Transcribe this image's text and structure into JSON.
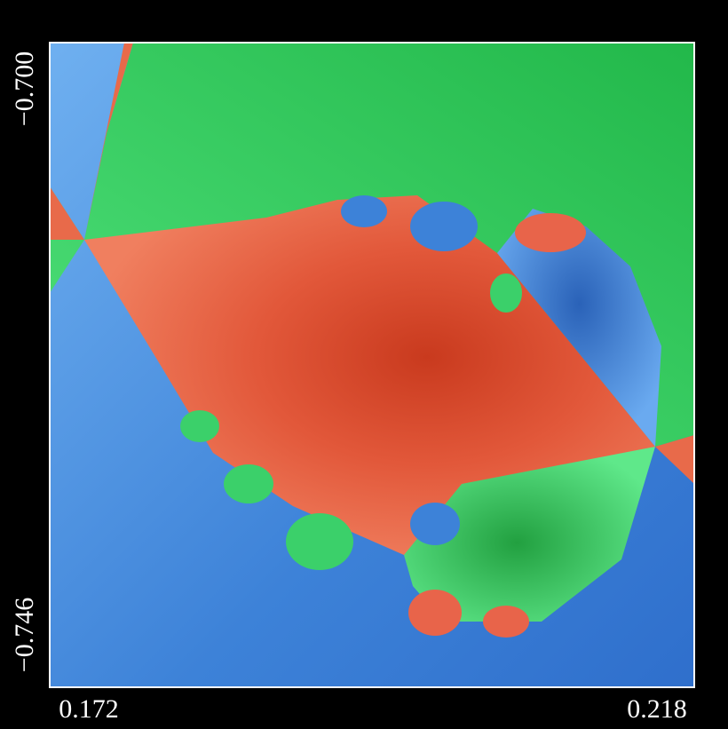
{
  "y_axis": {
    "top_label": "−0.700",
    "bottom_label": "−0.746"
  },
  "x_axis": {
    "left_label": "0.172",
    "right_label": "0.218"
  }
}
